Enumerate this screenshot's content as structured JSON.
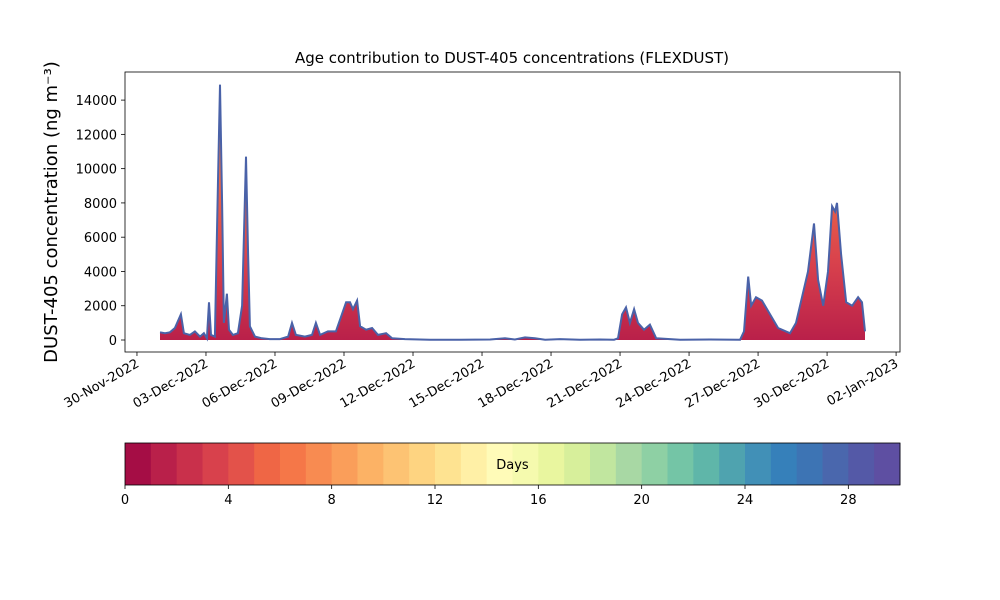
{
  "chart_data": {
    "type": "area",
    "title": "Age contribution to DUST-405 concentrations (FLEXDUST)",
    "y_label": "DUST-405 concentration (ng m⁻³)",
    "x": [
      1.0,
      1.22,
      1.43,
      1.65,
      1.91,
      2.04,
      2.3,
      2.52,
      2.74,
      2.91,
      3.04,
      3.13,
      3.22,
      3.39,
      3.52,
      3.61,
      3.7,
      3.78,
      3.91,
      4.0,
      4.17,
      4.39,
      4.57,
      4.74,
      4.83,
      4.91,
      5.13,
      5.43,
      5.78,
      6.22,
      6.57,
      6.74,
      6.91,
      7.3,
      7.61,
      7.78,
      7.96,
      8.3,
      8.65,
      8.91,
      9.09,
      9.26,
      9.39,
      9.57,
      9.7,
      9.96,
      10.22,
      10.48,
      10.83,
      11.09,
      11.65,
      12.74,
      14.04,
      15.35,
      16.0,
      16.43,
      16.87,
      17.3,
      17.74,
      18.39,
      19.26,
      20.13,
      20.74,
      20.91,
      21.09,
      21.26,
      21.43,
      21.61,
      21.78,
      22.04,
      22.3,
      22.57,
      23.61,
      24.91,
      26.22,
      26.39,
      26.57,
      26.7,
      26.91,
      27.17,
      27.52,
      27.87,
      28.39,
      28.65,
      28.91,
      29.17,
      29.43,
      29.61,
      29.83,
      30.04,
      30.22,
      30.35,
      30.43,
      30.61,
      30.83,
      31.09,
      31.35,
      31.52,
      31.65
    ],
    "series": [
      {
        "color": "#4a62a8",
        "values": [
          450,
          400,
          450,
          700,
          1500,
          400,
          300,
          500,
          200,
          400,
          100,
          2200,
          300,
          200,
          9000,
          14900,
          8000,
          1000,
          2700,
          600,
          300,
          400,
          2000,
          10700,
          5000,
          800,
          200,
          100,
          50,
          50,
          200,
          1000,
          300,
          200,
          300,
          1000,
          300,
          500,
          500,
          1500,
          2200,
          2200,
          1800,
          2300,
          800,
          600,
          700,
          300,
          400,
          100,
          50,
          20,
          20,
          30,
          100,
          30,
          150,
          100,
          20,
          50,
          20,
          30,
          20,
          100,
          1500,
          1900,
          1000,
          1800,
          1000,
          600,
          900,
          100,
          20,
          30,
          20,
          500,
          3700,
          2000,
          2500,
          2300,
          1500,
          700,
          400,
          1000,
          2500,
          4000,
          6800,
          3500,
          2000,
          4000,
          7800,
          7500,
          8000,
          5000,
          2200,
          2000,
          2500,
          2200,
          500
        ]
      }
    ],
    "xlim": [
      -0.52,
      33.17
    ],
    "xticks": [
      {
        "value": 0,
        "label": "30-Nov-2022"
      },
      {
        "value": 3,
        "label": "03-Dec-2022"
      },
      {
        "value": 6,
        "label": "06-Dec-2022"
      },
      {
        "value": 9,
        "label": "09-Dec-2022"
      },
      {
        "value": 12,
        "label": "12-Dec-2022"
      },
      {
        "value": 15,
        "label": "15-Dec-2022"
      },
      {
        "value": 18,
        "label": "18-Dec-2022"
      },
      {
        "value": 21,
        "label": "21-Dec-2022"
      },
      {
        "value": 24,
        "label": "24-Dec-2022"
      },
      {
        "value": 27,
        "label": "27-Dec-2022"
      },
      {
        "value": 30,
        "label": "30-Dec-2022"
      },
      {
        "value": 33,
        "label": "02-Jan-2023"
      }
    ],
    "ylim": [
      -700,
      15640
    ],
    "yticks": [
      0,
      2000,
      4000,
      6000,
      8000,
      10000,
      12000,
      14000
    ],
    "colorbar": {
      "label": "Days",
      "lim": [
        0,
        30
      ],
      "ticks": [
        0,
        4,
        8,
        12,
        16,
        20,
        24,
        28
      ],
      "colors": [
        "#a50d45",
        "#b9204a",
        "#c9304b",
        "#d8414c",
        "#e3524a",
        "#ef6645",
        "#f57748",
        "#f88b51",
        "#fa9e5a",
        "#fcb265",
        "#fdc373",
        "#fed481",
        "#fee391",
        "#fff0a6",
        "#fffbb8",
        "#f5faae",
        "#e9f69f",
        "#d7ef9b",
        "#c1e69f",
        "#a8d8a4",
        "#8ed0a4",
        "#74c5a6",
        "#5fb6a9",
        "#4fa3af",
        "#4190b7",
        "#3680ba",
        "#3d74b4",
        "#4a67ad",
        "#5459a7",
        "#5e4fa2"
      ]
    }
  }
}
